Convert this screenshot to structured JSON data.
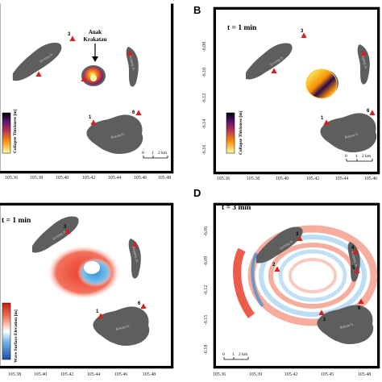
{
  "panels": {
    "A": {
      "letter": "",
      "time_label": "",
      "x_ticks": [
        "105.36",
        "105.38",
        "105.40",
        "105.42",
        "105.44",
        "105.46",
        "105.48"
      ],
      "y_ticks": [],
      "colorbar_label": "Collapse Thickness [m]",
      "volcano_label_line1": "Anak",
      "volcano_label_line2": "Krakatau",
      "scale_labels": [
        "0",
        "1",
        "2 km"
      ],
      "sites": [
        "1",
        "2",
        "3",
        "4",
        "5",
        "6"
      ]
    },
    "B": {
      "letter": "B",
      "time_label": "t = 1 min",
      "x_ticks": [
        "105.36",
        "105.38",
        "105.40",
        "105.42",
        "105.44",
        "105.46"
      ],
      "y_ticks": [
        "-6.08",
        "-6.10",
        "-6.12",
        "-6.14",
        "-6.16"
      ],
      "colorbar_label": "Collapse Thickness [m]",
      "scale_labels": [
        "0",
        "1",
        "2 km"
      ],
      "sites": [
        "1",
        "2",
        "3",
        "4",
        "5",
        "6"
      ]
    },
    "C": {
      "letter": "",
      "time_label": "t = 1 min",
      "x_ticks": [
        "105.38",
        "105.40",
        "105.42",
        "105.44",
        "105.46",
        "105.48"
      ],
      "y_ticks": [],
      "colorbar_label": "Wave Surface Elevation [m]",
      "sites": [
        "1",
        "2",
        "3",
        "4",
        "5",
        "6"
      ]
    },
    "D": {
      "letter": "D",
      "time_label": "t = 3 min",
      "x_ticks": [
        "105.36",
        "105.39",
        "105.42",
        "105.45",
        "105.48"
      ],
      "y_ticks": [
        "-6.06",
        "-6.09",
        "-6.12",
        "-6.15",
        "-6.18"
      ],
      "scale_labels": [
        "0",
        "1",
        "2 km"
      ],
      "sites": [
        "1",
        "2",
        "3",
        "4",
        "5",
        "6"
      ]
    }
  },
  "island_names": {
    "rakata": "Rakata Is.",
    "sertung": "Sertung Is.",
    "panjang": "Panjang Is."
  },
  "colors": {
    "land": "#5e5e5e",
    "marker": "#d81e1e",
    "wave_positive": "#e8321e",
    "wave_negative": "#2f8fd6"
  }
}
